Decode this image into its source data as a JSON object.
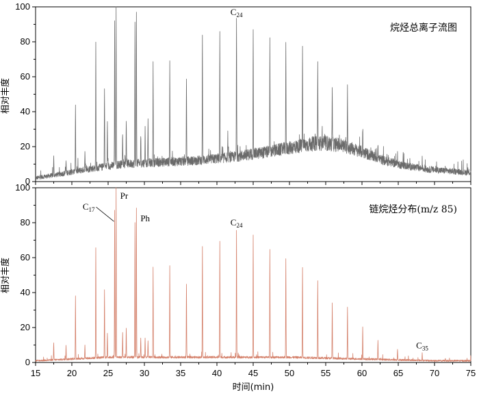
{
  "chart_data": [
    {
      "type": "line",
      "title": "烷烃总离子流图",
      "xlabel": "时间(min)",
      "ylabel": "相对丰度",
      "xlim": [
        15,
        75
      ],
      "ylim": [
        0,
        100
      ],
      "x_ticks": [
        "15",
        "20",
        "25",
        "30",
        "35",
        "40",
        "45",
        "50",
        "55",
        "60",
        "65",
        "70",
        "75"
      ],
      "y_ticks": [
        "0",
        "20",
        "40",
        "60",
        "80",
        "100"
      ],
      "color": "#6b6b6b",
      "baseline": [
        [
          15,
          2
        ],
        [
          18,
          4
        ],
        [
          22,
          7
        ],
        [
          27,
          10
        ],
        [
          32,
          11
        ],
        [
          37,
          12
        ],
        [
          42,
          14
        ],
        [
          47,
          17
        ],
        [
          51,
          20
        ],
        [
          54,
          22
        ],
        [
          57,
          21
        ],
        [
          60,
          17
        ],
        [
          63,
          12
        ],
        [
          66,
          9
        ],
        [
          69,
          7
        ],
        [
          72,
          6
        ],
        [
          75,
          5
        ]
      ],
      "peaks": [
        [
          17.5,
          14
        ],
        [
          19.2,
          12
        ],
        [
          20.5,
          45
        ],
        [
          21.8,
          16
        ],
        [
          23.3,
          78
        ],
        [
          24.5,
          55
        ],
        [
          24.9,
          34
        ],
        [
          25.9,
          90
        ],
        [
          26.1,
          100
        ],
        [
          27.0,
          28
        ],
        [
          27.5,
          36
        ],
        [
          28.7,
          90
        ],
        [
          28.9,
          98
        ],
        [
          29.5,
          27
        ],
        [
          30.1,
          30
        ],
        [
          30.5,
          35
        ],
        [
          31.2,
          67
        ],
        [
          33.5,
          69
        ],
        [
          35.8,
          58
        ],
        [
          38.0,
          82
        ],
        [
          40.4,
          86
        ],
        [
          41.5,
          27
        ],
        [
          42.7,
          93
        ],
        [
          45.0,
          90
        ],
        [
          47.3,
          83
        ],
        [
          49.5,
          79
        ],
        [
          51.8,
          76
        ],
        [
          53.9,
          67
        ],
        [
          54.5,
          30
        ],
        [
          55.9,
          52
        ],
        [
          58.0,
          52
        ],
        [
          60.1,
          31
        ],
        [
          62.2,
          23
        ],
        [
          64.9,
          15
        ],
        [
          68.3,
          12
        ],
        [
          71.5,
          8
        ]
      ],
      "annotations": [
        {
          "text": "C",
          "sub": "24",
          "x": 42.7,
          "y": 93
        }
      ]
    },
    {
      "type": "line",
      "title": "链烷烃分布(m/z 85)",
      "xlabel": "时间(min)",
      "ylabel": "相对丰度",
      "xlim": [
        15,
        75
      ],
      "ylim": [
        0,
        100
      ],
      "x_ticks": [
        "15",
        "20",
        "25",
        "30",
        "35",
        "40",
        "45",
        "50",
        "55",
        "60",
        "65",
        "70",
        "75"
      ],
      "y_ticks": [
        "0",
        "20",
        "40",
        "60",
        "80",
        "100"
      ],
      "color": "#d4806a",
      "baseline": [
        [
          15,
          1
        ],
        [
          20,
          2
        ],
        [
          25,
          3
        ],
        [
          30,
          3
        ],
        [
          40,
          3
        ],
        [
          50,
          3
        ],
        [
          60,
          2
        ],
        [
          70,
          1
        ],
        [
          75,
          1
        ]
      ],
      "peaks": [
        [
          17.5,
          11
        ],
        [
          19.2,
          10
        ],
        [
          20.5,
          38
        ],
        [
          21.8,
          10
        ],
        [
          23.3,
          66
        ],
        [
          24.5,
          42
        ],
        [
          24.9,
          17
        ],
        [
          25.9,
          87
        ],
        [
          26.1,
          100
        ],
        [
          27.0,
          17
        ],
        [
          27.5,
          20
        ],
        [
          28.7,
          80
        ],
        [
          28.9,
          89
        ],
        [
          29.5,
          14
        ],
        [
          30.1,
          14
        ],
        [
          30.5,
          12
        ],
        [
          31.2,
          54
        ],
        [
          33.5,
          55
        ],
        [
          35.8,
          45
        ],
        [
          38.0,
          67
        ],
        [
          40.4,
          70
        ],
        [
          42.7,
          76
        ],
        [
          45.0,
          73
        ],
        [
          47.3,
          65
        ],
        [
          49.5,
          59
        ],
        [
          51.8,
          55
        ],
        [
          53.9,
          47
        ],
        [
          55.9,
          34
        ],
        [
          58.0,
          32
        ],
        [
          60.1,
          20
        ],
        [
          62.2,
          13
        ],
        [
          64.9,
          8
        ],
        [
          68.3,
          5
        ],
        [
          71.5,
          2
        ]
      ],
      "annotations": [
        {
          "text": "C",
          "sub": "17",
          "x": 25.9,
          "y": 87
        },
        {
          "text": "Pr",
          "sub": "",
          "x": 26.1,
          "y": 100
        },
        {
          "text": "Ph",
          "sub": "",
          "x": 28.9,
          "y": 89
        },
        {
          "text": "C",
          "sub": "24",
          "x": 42.7,
          "y": 76
        },
        {
          "text": "C",
          "sub": "35",
          "x": 68.3,
          "y": 5
        }
      ]
    }
  ]
}
